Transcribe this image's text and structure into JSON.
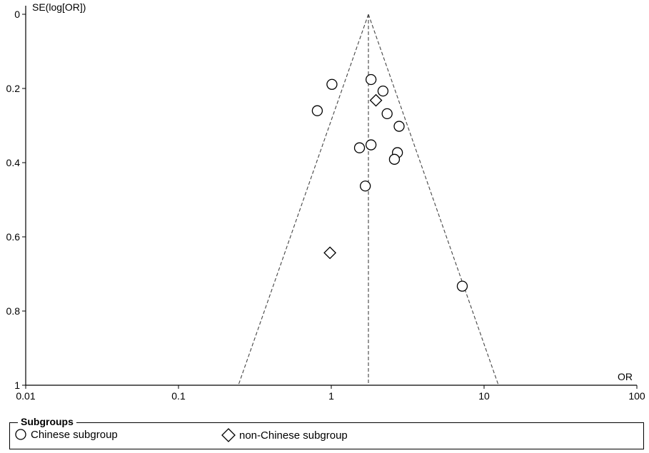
{
  "chart_data": {
    "type": "scatter",
    "title": "",
    "xlabel": "OR",
    "ylabel": "SE(log[OR])",
    "x_scale": "log",
    "xlim": [
      0.01,
      100
    ],
    "ylim": [
      0,
      1
    ],
    "y_inverted": true,
    "x_ticks": [
      "0.01",
      "0.1",
      "1",
      "10",
      "100"
    ],
    "y_ticks": [
      "0",
      "0.2",
      "0.4",
      "0.6",
      "0.8",
      "1"
    ],
    "pooled_or": 1.75,
    "series": [
      {
        "name": "Chinese subgroup",
        "marker": "circle",
        "points": [
          {
            "x": 1.82,
            "y": 0.176
          },
          {
            "x": 1.01,
            "y": 0.189
          },
          {
            "x": 2.18,
            "y": 0.207
          },
          {
            "x": 0.81,
            "y": 0.26
          },
          {
            "x": 2.32,
            "y": 0.268
          },
          {
            "x": 2.78,
            "y": 0.302
          },
          {
            "x": 1.82,
            "y": 0.352
          },
          {
            "x": 1.53,
            "y": 0.36
          },
          {
            "x": 2.71,
            "y": 0.373
          },
          {
            "x": 2.59,
            "y": 0.391
          },
          {
            "x": 1.67,
            "y": 0.463
          },
          {
            "x": 7.2,
            "y": 0.733
          }
        ]
      },
      {
        "name": "non-Chinese subgroup",
        "marker": "diamond",
        "points": [
          {
            "x": 1.96,
            "y": 0.232
          },
          {
            "x": 0.98,
            "y": 0.643
          }
        ]
      }
    ],
    "legend": {
      "title": "Subgroups",
      "position": "bottom"
    }
  }
}
